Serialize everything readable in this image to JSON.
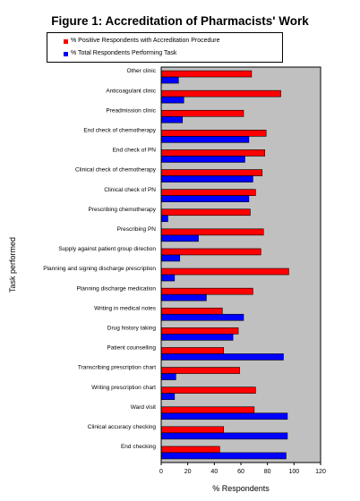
{
  "chart_data": {
    "type": "bar",
    "orientation": "horizontal",
    "title": "Figure 1: Accreditation of Pharmacists' Work",
    "xlabel": "% Respondents",
    "ylabel": "Task performed",
    "xlim": [
      0,
      120
    ],
    "xticks": [
      0,
      20,
      40,
      60,
      80,
      100,
      120
    ],
    "grid": false,
    "plot_background": "#c0c0c0",
    "legend_position": "top",
    "categories": [
      "Other clinic",
      "Anticoagulant clinic",
      "Preadmission clinic",
      "End check of chemotherapy",
      "End check of PN",
      "Clinical check of chemotherapy",
      "Clinical check of PN",
      "Prescribing chemotherapy",
      "Prescribing PN",
      "Supply against patient group direction",
      "Planning and signing discharge prescription",
      "Planning discharge medication",
      "Writing in medical notes",
      "Drug history taking",
      "Patient counselling",
      "Transcribing prescription chart",
      "Writing prescription chart",
      "Ward visit",
      "Clinical accuracy checking",
      "End checking"
    ],
    "series": [
      {
        "name": "% Positive Respondents with Accreditation Procedure",
        "color": "#ff0000",
        "values": [
          68,
          90,
          62,
          79,
          78,
          76,
          71,
          67,
          77,
          75,
          96,
          69,
          46,
          58,
          47,
          59,
          71,
          70,
          47,
          44
        ]
      },
      {
        "name": "% Total Respondents Performing Task",
        "color": "#0000ff",
        "values": [
          13,
          17,
          16,
          66,
          63,
          69,
          66,
          5,
          28,
          14,
          10,
          34,
          62,
          54,
          92,
          11,
          10,
          95,
          95,
          94
        ]
      }
    ]
  }
}
